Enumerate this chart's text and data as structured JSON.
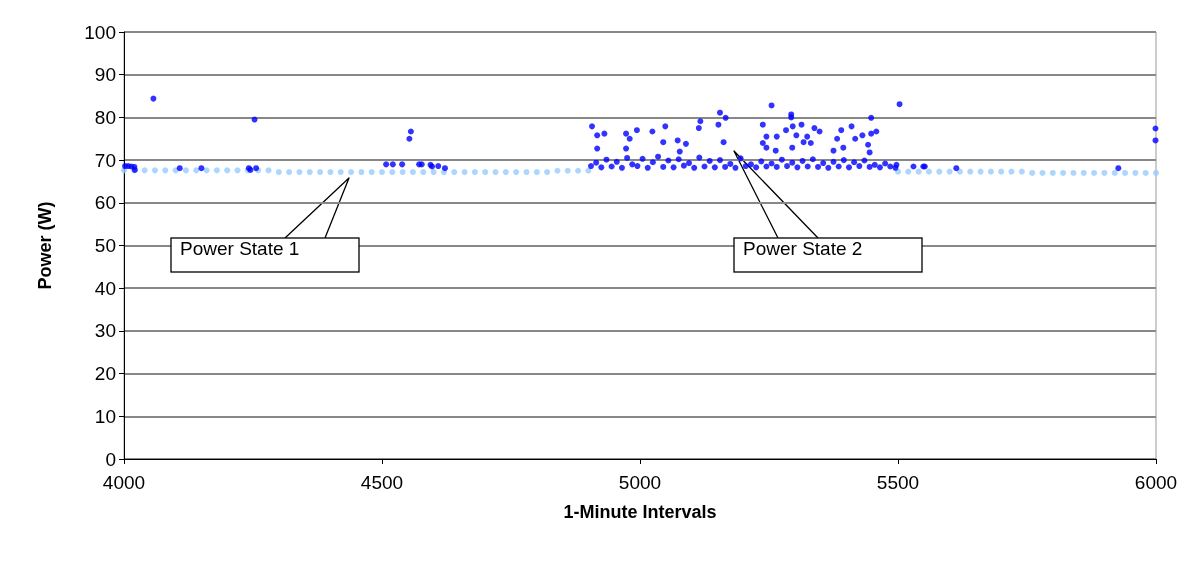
{
  "chart_data": {
    "type": "scatter",
    "xlabel": "1-Minute Intervals",
    "ylabel": "Power (W)",
    "xlim": [
      4000,
      6000
    ],
    "xticks": [
      {
        "value": 4000,
        "label": "4000"
      },
      {
        "value": 4500,
        "label": "4500"
      },
      {
        "value": 5000,
        "label": "5000"
      },
      {
        "value": 5500,
        "label": "5500"
      },
      {
        "value": 6000,
        "label": "6000"
      }
    ],
    "ylim": [
      0,
      100
    ],
    "yticks": [
      0,
      10,
      20,
      30,
      40,
      50,
      60,
      70,
      80,
      90,
      100
    ],
    "grid": "y",
    "marker": "circle",
    "annotations": [
      "Power State 1",
      "Power State 2"
    ],
    "series": [
      {
        "color": "#99ccff",
        "x": [
          4000,
          4020,
          4040,
          4060,
          4080,
          4100,
          4120,
          4140,
          4160,
          4180,
          4200,
          4220,
          4240,
          4260,
          4280,
          4300,
          4320,
          4340,
          4360,
          4380,
          4400,
          4420,
          4440,
          4460,
          4480,
          4500,
          4520,
          4540,
          4560,
          4580,
          4600,
          4620,
          4640,
          4660,
          4680,
          4700,
          4720,
          4740,
          4760,
          4780,
          4800,
          4820,
          4840,
          4860,
          4880,
          4900,
          5500,
          5520,
          5540,
          5560,
          5580,
          5600,
          5620,
          5640,
          5660,
          5680,
          5700,
          5720,
          5740,
          5760,
          5780,
          5800,
          5820,
          5840,
          5860,
          5880,
          5900,
          5920,
          5940,
          5960,
          5980,
          6000
        ],
        "values": [
          67.6,
          67.6,
          67.6,
          67.6,
          67.6,
          67.6,
          67.6,
          67.6,
          67.6,
          67.6,
          67.6,
          67.6,
          67.6,
          67.6,
          67.6,
          67.2,
          67.2,
          67.2,
          67.2,
          67.2,
          67.2,
          67.2,
          67.2,
          67.2,
          67.2,
          67.2,
          67.2,
          67.2,
          67.2,
          67.2,
          67.2,
          67.2,
          67.2,
          67.2,
          67.2,
          67.2,
          67.2,
          67.2,
          67.2,
          67.2,
          67.2,
          67.2,
          67.5,
          67.5,
          67.5,
          67.5,
          67.3,
          67.3,
          67.3,
          67.3,
          67.3,
          67.3,
          67.3,
          67.3,
          67.3,
          67.3,
          67.3,
          67.3,
          67.3,
          67.0,
          67.0,
          67.0,
          67.0,
          67.0,
          67.0,
          67.0,
          67.0,
          67.0,
          67.0,
          67.0,
          67.0,
          67.0
        ]
      },
      {
        "color": "#0000ff",
        "x": [
          4002,
          4008,
          4014,
          4020,
          4021,
          4057,
          4108,
          4150,
          4242,
          4245,
          4253,
          4256,
          4508,
          4521,
          4539,
          4553,
          4556,
          4572,
          4577,
          4594,
          4597,
          4609,
          4622,
          4905,
          4907,
          4915,
          4917,
          4917,
          4925,
          4931,
          4935,
          4945,
          4955,
          4965,
          4973,
          4973,
          4975,
          4980,
          4985,
          4994,
          4995,
          5005,
          5015,
          5024,
          5025,
          5035,
          5045,
          5045,
          5049,
          5055,
          5065,
          5073,
          5075,
          5077,
          5085,
          5089,
          5095,
          5105,
          5114,
          5115,
          5117,
          5125,
          5135,
          5145,
          5152,
          5155,
          5155,
          5162,
          5165,
          5166,
          5175,
          5185,
          5195,
          5205,
          5215,
          5225,
          5235,
          5238,
          5238,
          5245,
          5245,
          5245,
          5255,
          5255,
          5263,
          5265,
          5265,
          5275,
          5283,
          5285,
          5293,
          5293,
          5295,
          5295,
          5296,
          5303,
          5305,
          5313,
          5315,
          5317,
          5324,
          5325,
          5331,
          5335,
          5338,
          5345,
          5348,
          5355,
          5365,
          5375,
          5375,
          5382,
          5385,
          5390,
          5394,
          5395,
          5405,
          5410,
          5415,
          5417,
          5425,
          5431,
          5435,
          5442,
          5445,
          5445,
          5448,
          5448,
          5455,
          5458,
          5465,
          5475,
          5485,
          5495,
          5497,
          5503,
          5530,
          5549,
          5552,
          5613,
          5927,
          5999,
          5999
        ],
        "values": [
          68.6,
          68.6,
          68.5,
          68.4,
          67.7,
          84.4,
          68.1,
          68.1,
          68.1,
          67.7,
          79.5,
          68.1,
          69.0,
          69.0,
          69.0,
          75.0,
          76.7,
          69.0,
          69.0,
          68.9,
          68.5,
          68.6,
          68.1,
          68.6,
          77.9,
          69.4,
          75.8,
          72.7,
          68.3,
          76.2,
          70.1,
          68.5,
          69.6,
          68.2,
          76.2,
          72.7,
          70.5,
          75.0,
          69.0,
          77.0,
          68.6,
          70.3,
          68.2,
          76.7,
          69.5,
          70.8,
          74.2,
          68.4,
          77.9,
          69.9,
          68.3,
          74.6,
          70.2,
          72.0,
          68.7,
          73.8,
          69.3,
          68.2,
          77.5,
          70.6,
          79.1,
          68.5,
          69.8,
          68.3,
          78.3,
          81.1,
          70.0,
          74.2,
          68.4,
          79.9,
          69.1,
          68.2,
          70.4,
          68.6,
          69.0,
          68.3,
          69.7,
          78.3,
          74.0,
          75.5,
          72.9,
          68.5,
          82.8,
          69.2,
          72.2,
          75.5,
          68.4,
          70.1,
          77.0,
          68.6,
          80.7,
          80.0,
          72.9,
          69.4,
          77.9,
          75.8,
          68.3,
          78.3,
          69.8,
          74.2,
          75.5,
          68.5,
          74.0,
          70.2,
          77.5,
          68.4,
          76.7,
          69.3,
          68.2,
          72.2,
          69.6,
          75.0,
          68.5,
          77.0,
          72.9,
          70.0,
          68.3,
          77.9,
          69.5,
          75.0,
          68.6,
          75.8,
          69.9,
          73.6,
          71.8,
          68.4,
          79.9,
          76.2,
          68.9,
          76.7,
          68.3,
          69.2,
          68.5,
          68.2,
          68.9,
          83.1,
          68.5,
          68.5,
          68.5,
          68.1,
          68.1,
          77.4,
          74.6
        ]
      }
    ]
  }
}
